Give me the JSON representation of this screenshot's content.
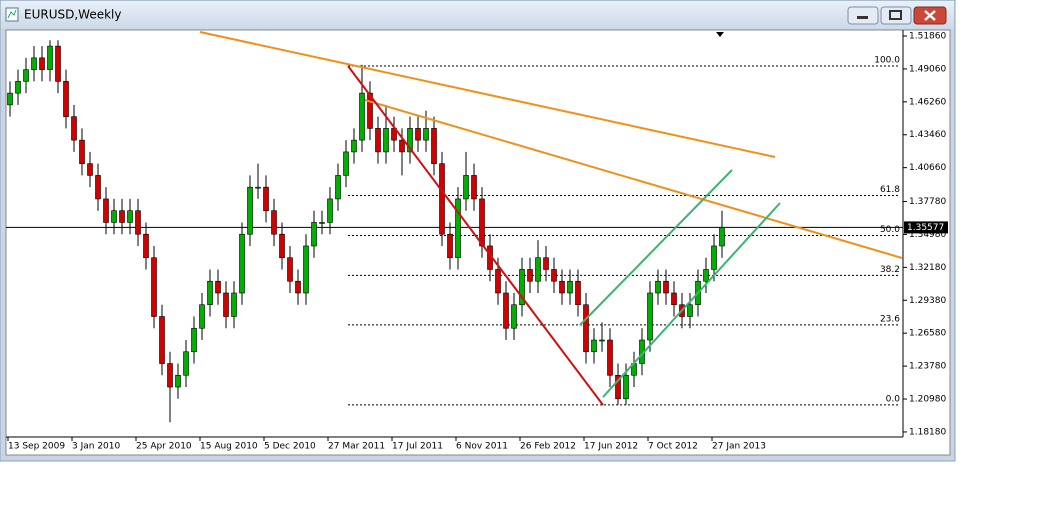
{
  "window": {
    "title": "EURUSD,Weekly"
  },
  "chart_data": {
    "type": "candlestick",
    "colors": {
      "up": "#00b000",
      "down": "#d40000"
    },
    "candles": [
      [
        1.46,
        1.48,
        1.45,
        1.47
      ],
      [
        1.47,
        1.49,
        1.46,
        1.48
      ],
      [
        1.48,
        1.5,
        1.47,
        1.49
      ],
      [
        1.49,
        1.51,
        1.48,
        1.5
      ],
      [
        1.5,
        1.51,
        1.48,
        1.49
      ],
      [
        1.49,
        1.515,
        1.48,
        1.51
      ],
      [
        1.51,
        1.515,
        1.47,
        1.48
      ],
      [
        1.48,
        1.49,
        1.44,
        1.45
      ],
      [
        1.45,
        1.46,
        1.42,
        1.43
      ],
      [
        1.43,
        1.44,
        1.4,
        1.41
      ],
      [
        1.41,
        1.42,
        1.39,
        1.4
      ],
      [
        1.4,
        1.41,
        1.37,
        1.38
      ],
      [
        1.38,
        1.39,
        1.35,
        1.36
      ],
      [
        1.36,
        1.38,
        1.35,
        1.37
      ],
      [
        1.37,
        1.38,
        1.35,
        1.36
      ],
      [
        1.36,
        1.38,
        1.35,
        1.37
      ],
      [
        1.37,
        1.38,
        1.34,
        1.35
      ],
      [
        1.35,
        1.36,
        1.32,
        1.33
      ],
      [
        1.33,
        1.34,
        1.27,
        1.28
      ],
      [
        1.28,
        1.29,
        1.23,
        1.24
      ],
      [
        1.24,
        1.25,
        1.19,
        1.22
      ],
      [
        1.22,
        1.24,
        1.21,
        1.23
      ],
      [
        1.23,
        1.26,
        1.22,
        1.25
      ],
      [
        1.25,
        1.28,
        1.24,
        1.27
      ],
      [
        1.27,
        1.3,
        1.26,
        1.29
      ],
      [
        1.29,
        1.32,
        1.28,
        1.31
      ],
      [
        1.31,
        1.32,
        1.29,
        1.3
      ],
      [
        1.3,
        1.31,
        1.27,
        1.28
      ],
      [
        1.28,
        1.31,
        1.27,
        1.3
      ],
      [
        1.3,
        1.36,
        1.29,
        1.35
      ],
      [
        1.35,
        1.4,
        1.34,
        1.39
      ],
      [
        1.39,
        1.41,
        1.38,
        1.39
      ],
      [
        1.39,
        1.4,
        1.36,
        1.37
      ],
      [
        1.37,
        1.38,
        1.34,
        1.35
      ],
      [
        1.35,
        1.36,
        1.32,
        1.33
      ],
      [
        1.33,
        1.34,
        1.3,
        1.31
      ],
      [
        1.31,
        1.32,
        1.29,
        1.3
      ],
      [
        1.3,
        1.35,
        1.29,
        1.34
      ],
      [
        1.34,
        1.37,
        1.33,
        1.36
      ],
      [
        1.36,
        1.37,
        1.35,
        1.36
      ],
      [
        1.36,
        1.39,
        1.35,
        1.38
      ],
      [
        1.38,
        1.41,
        1.37,
        1.4
      ],
      [
        1.4,
        1.43,
        1.39,
        1.42
      ],
      [
        1.42,
        1.44,
        1.41,
        1.43
      ],
      [
        1.43,
        1.494,
        1.42,
        1.47
      ],
      [
        1.47,
        1.48,
        1.43,
        1.44
      ],
      [
        1.44,
        1.45,
        1.41,
        1.42
      ],
      [
        1.42,
        1.46,
        1.41,
        1.44
      ],
      [
        1.44,
        1.45,
        1.42,
        1.43
      ],
      [
        1.43,
        1.44,
        1.4,
        1.42
      ],
      [
        1.42,
        1.45,
        1.41,
        1.44
      ],
      [
        1.44,
        1.45,
        1.42,
        1.43
      ],
      [
        1.43,
        1.455,
        1.42,
        1.44
      ],
      [
        1.44,
        1.45,
        1.4,
        1.41
      ],
      [
        1.41,
        1.42,
        1.34,
        1.35
      ],
      [
        1.35,
        1.36,
        1.32,
        1.33
      ],
      [
        1.33,
        1.39,
        1.32,
        1.38
      ],
      [
        1.38,
        1.42,
        1.37,
        1.4
      ],
      [
        1.4,
        1.41,
        1.37,
        1.38
      ],
      [
        1.38,
        1.39,
        1.33,
        1.34
      ],
      [
        1.34,
        1.35,
        1.31,
        1.32
      ],
      [
        1.32,
        1.33,
        1.29,
        1.3
      ],
      [
        1.3,
        1.31,
        1.26,
        1.27
      ],
      [
        1.27,
        1.3,
        1.26,
        1.29
      ],
      [
        1.29,
        1.33,
        1.28,
        1.32
      ],
      [
        1.32,
        1.33,
        1.3,
        1.31
      ],
      [
        1.31,
        1.345,
        1.3,
        1.33
      ],
      [
        1.33,
        1.34,
        1.31,
        1.32
      ],
      [
        1.32,
        1.33,
        1.3,
        1.31
      ],
      [
        1.31,
        1.32,
        1.29,
        1.3
      ],
      [
        1.3,
        1.32,
        1.29,
        1.31
      ],
      [
        1.31,
        1.32,
        1.28,
        1.29
      ],
      [
        1.29,
        1.3,
        1.24,
        1.25
      ],
      [
        1.25,
        1.27,
        1.24,
        1.26
      ],
      [
        1.26,
        1.275,
        1.25,
        1.26
      ],
      [
        1.26,
        1.27,
        1.22,
        1.23
      ],
      [
        1.23,
        1.24,
        1.205,
        1.21
      ],
      [
        1.21,
        1.24,
        1.205,
        1.23
      ],
      [
        1.23,
        1.25,
        1.22,
        1.24
      ],
      [
        1.24,
        1.27,
        1.23,
        1.26
      ],
      [
        1.26,
        1.31,
        1.25,
        1.3
      ],
      [
        1.3,
        1.32,
        1.29,
        1.31
      ],
      [
        1.31,
        1.32,
        1.29,
        1.3
      ],
      [
        1.3,
        1.31,
        1.28,
        1.29
      ],
      [
        1.29,
        1.3,
        1.27,
        1.28
      ],
      [
        1.28,
        1.3,
        1.27,
        1.29
      ],
      [
        1.29,
        1.32,
        1.28,
        1.31
      ],
      [
        1.31,
        1.33,
        1.3,
        1.32
      ],
      [
        1.32,
        1.35,
        1.31,
        1.34
      ],
      [
        1.34,
        1.37,
        1.33,
        1.3558
      ]
    ],
    "xticks": [
      {
        "value": 0,
        "label": "13 Sep 2009"
      },
      {
        "value": 8,
        "label": "3 Jan 2010"
      },
      {
        "value": 16,
        "label": "25 Apr 2010"
      },
      {
        "value": 24,
        "label": "15 Aug 2010"
      },
      {
        "value": 32,
        "label": "5 Dec 2010"
      },
      {
        "value": 40,
        "label": "27 Mar 2011"
      },
      {
        "value": 48,
        "label": "17 Jul 2011"
      },
      {
        "value": 56,
        "label": "6 Nov 2011"
      },
      {
        "value": 64,
        "label": "26 Feb 2012"
      },
      {
        "value": 72,
        "label": "17 Jun 2012"
      },
      {
        "value": 80,
        "label": "7 Oct 2012"
      },
      {
        "value": 88,
        "label": "27 Jan 2013"
      }
    ],
    "ylim": [
      1.1775,
      1.5237
    ],
    "yticks": [
      {
        "value": 1.5186,
        "label": "1.51860"
      },
      {
        "value": 1.4906,
        "label": "1.49060"
      },
      {
        "value": 1.4626,
        "label": "1.46260"
      },
      {
        "value": 1.4346,
        "label": "1.43460"
      },
      {
        "value": 1.4066,
        "label": "1.40660"
      },
      {
        "value": 1.3778,
        "label": "1.37780"
      },
      {
        "value": 1.3498,
        "label": "1.34980"
      },
      {
        "value": 1.3218,
        "label": "1.32180"
      },
      {
        "value": 1.2938,
        "label": "1.29380"
      },
      {
        "value": 1.2658,
        "label": "1.26580"
      },
      {
        "value": 1.2378,
        "label": "1.23780"
      },
      {
        "value": 1.2098,
        "label": "1.20980"
      },
      {
        "value": 1.1818,
        "label": "1.18180"
      }
    ],
    "current_price": 1.35577,
    "fibonacci": {
      "high": 1.4931,
      "low": 1.2048,
      "levels": [
        {
          "value": 100,
          "label": "100.0"
        },
        {
          "value": 61.8,
          "label": "61.8"
        },
        {
          "value": 50,
          "label": "50.0"
        },
        {
          "value": 38.2,
          "label": "38.2"
        },
        {
          "value": 23.6,
          "label": "23.6"
        },
        {
          "value": 0,
          "label": "0.0"
        }
      ]
    }
  }
}
